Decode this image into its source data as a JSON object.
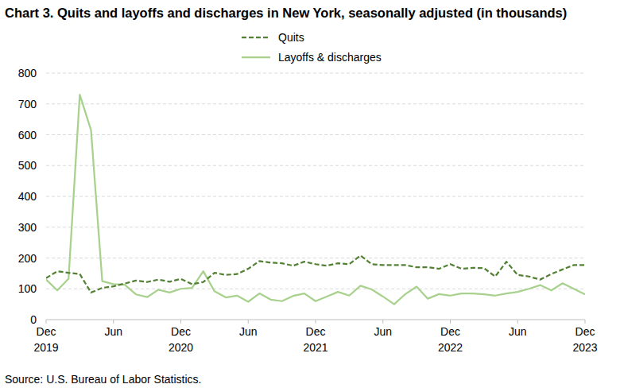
{
  "chart_data": {
    "type": "line",
    "title": "Chart 3. Quits and layoffs and discharges in New York, seasonally adjusted (in thousands)",
    "source": "Source: U.S. Bureau of Labor Statistics.",
    "categories": [
      "Dec 2019",
      null,
      null,
      null,
      null,
      null,
      "Jun",
      null,
      null,
      null,
      null,
      null,
      "Dec 2020",
      null,
      null,
      null,
      null,
      null,
      "Jun",
      null,
      null,
      null,
      null,
      null,
      "Dec 2021",
      null,
      null,
      null,
      null,
      null,
      "Jun",
      null,
      null,
      null,
      null,
      null,
      "Dec 2022",
      null,
      null,
      null,
      null,
      null,
      "Jun",
      null,
      null,
      null,
      null,
      null,
      "Dec 2023"
    ],
    "series": [
      {
        "name": "Quits",
        "color": "#548235",
        "line_style": "dashed",
        "values": [
          135,
          157,
          152,
          148,
          88,
          103,
          108,
          117,
          127,
          122,
          130,
          123,
          132,
          115,
          122,
          152,
          145,
          148,
          165,
          190,
          185,
          183,
          175,
          188,
          180,
          175,
          183,
          180,
          208,
          180,
          177,
          177,
          177,
          170,
          170,
          165,
          180,
          165,
          168,
          167,
          140,
          188,
          145,
          140,
          130,
          148,
          163,
          177,
          177
        ]
      },
      {
        "name": "Layoffs & discharges",
        "color": "#a9d18e",
        "line_style": "solid",
        "values": [
          130,
          95,
          133,
          730,
          615,
          125,
          115,
          113,
          82,
          73,
          97,
          88,
          100,
          103,
          157,
          92,
          72,
          78,
          58,
          85,
          65,
          60,
          77,
          85,
          60,
          75,
          90,
          78,
          110,
          98,
          75,
          50,
          83,
          107,
          68,
          83,
          78,
          85,
          85,
          82,
          78,
          85,
          90,
          100,
          112,
          95,
          118,
          100,
          82
        ]
      }
    ],
    "ylim": [
      0,
      800
    ],
    "yticks": [
      0,
      100,
      200,
      300,
      400,
      500,
      600,
      700,
      800
    ],
    "grid": true,
    "legend": "top"
  }
}
